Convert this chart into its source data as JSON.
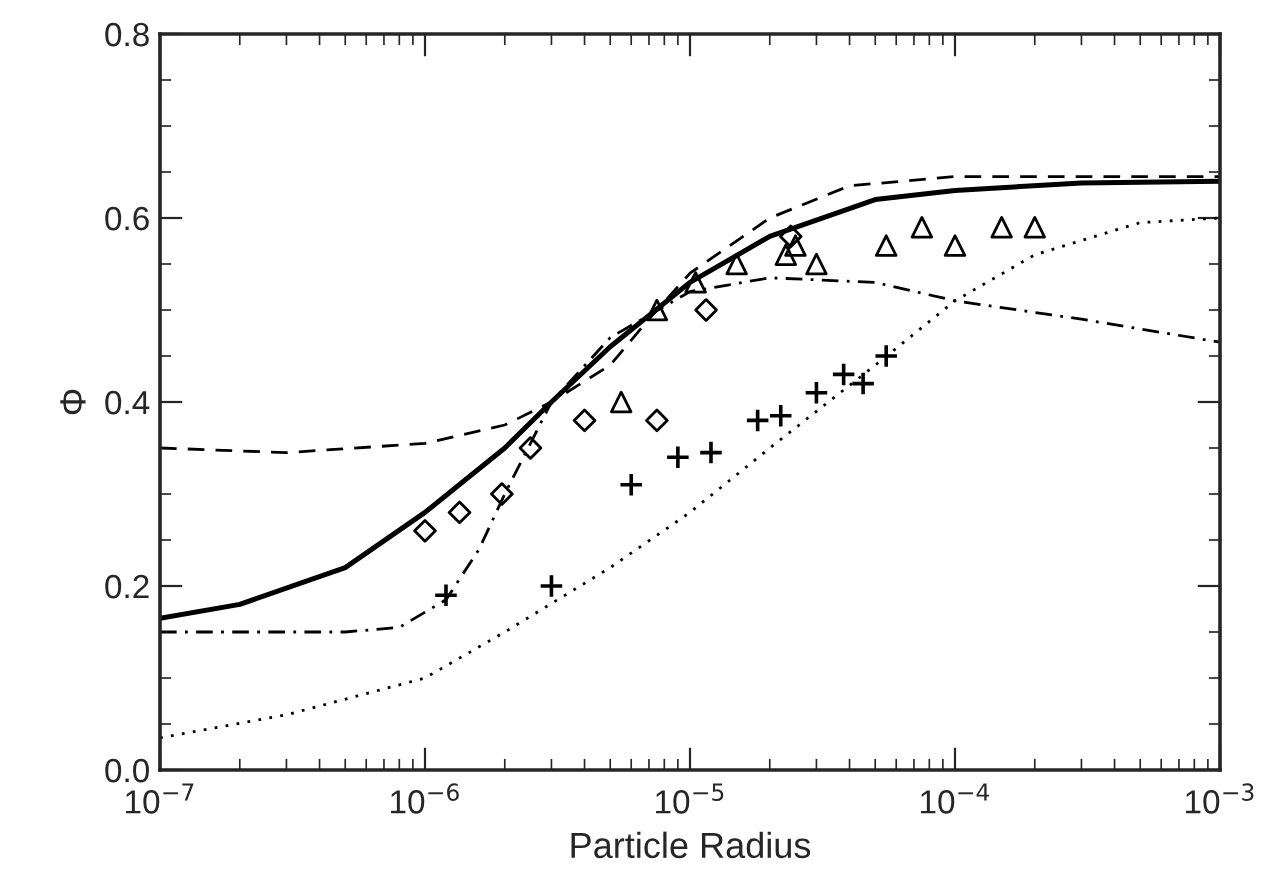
{
  "chart_data": {
    "type": "line",
    "xlabel": "Particle Radius",
    "ylabel": "Φ",
    "log": "x",
    "grid": false,
    "legend": false,
    "xlim": [
      1e-07,
      0.001
    ],
    "xticks": [
      {
        "value": 1e-07,
        "label": "10$^{−7}$"
      },
      {
        "value": 1e-06,
        "label": "10$^{−6}$"
      },
      {
        "value": 1e-05,
        "label": "10$^{−5}$"
      },
      {
        "value": 0.0001,
        "label": "10$^{−4}$"
      },
      {
        "value": 0.001,
        "label": "10$^{−3}$"
      }
    ],
    "ylim": [
      0,
      0.8
    ],
    "yticks": [
      {
        "value": 0,
        "label": "0.0"
      },
      0.2,
      0.4,
      0.6,
      0.8
    ],
    "series": [
      {
        "line_style": "solid",
        "color": "#000000",
        "x": [
          1e-07,
          2e-07,
          5e-07,
          1e-06,
          2e-06,
          3e-06,
          5e-06,
          1e-05,
          2e-05,
          5e-05,
          0.0001,
          0.0003,
          0.001
        ],
        "values": [
          0.165,
          0.18,
          0.22,
          0.28,
          0.35,
          0.4,
          0.46,
          0.53,
          0.58,
          0.62,
          0.63,
          0.638,
          0.64
        ]
      },
      {
        "line_style": "dashed",
        "color": "#000000",
        "x": [
          1e-07,
          3e-07,
          1e-06,
          2e-06,
          3e-06,
          5e-06,
          7e-06,
          1e-05,
          2e-05,
          4e-05,
          0.0001,
          0.001
        ],
        "values": [
          0.35,
          0.345,
          0.355,
          0.375,
          0.4,
          0.44,
          0.49,
          0.54,
          0.6,
          0.635,
          0.645,
          0.645
        ]
      },
      {
        "line_style": "dashdot",
        "color": "#000000",
        "x": [
          1e-07,
          5e-07,
          8e-07,
          1.2e-06,
          1.6e-06,
          2e-06,
          3e-06,
          5e-06,
          1e-05,
          2e-05,
          5e-05,
          0.0001,
          0.0003,
          0.001
        ],
        "values": [
          0.15,
          0.15,
          0.155,
          0.185,
          0.24,
          0.3,
          0.4,
          0.47,
          0.52,
          0.535,
          0.53,
          0.51,
          0.49,
          0.465
        ]
      },
      {
        "line_style": "dotted",
        "color": "#000000",
        "x": [
          1e-07,
          3e-07,
          1e-06,
          2e-06,
          5e-06,
          1e-05,
          2e-05,
          5e-05,
          0.0001,
          0.0002,
          0.0005,
          0.001
        ],
        "values": [
          0.035,
          0.06,
          0.1,
          0.15,
          0.22,
          0.28,
          0.35,
          0.44,
          0.51,
          0.56,
          0.595,
          0.6
        ]
      },
      {
        "type": "scatter",
        "marker": "diamond",
        "color": "#000000",
        "x": [
          1e-06,
          1.35e-06,
          1.95e-06,
          2.5e-06,
          4e-06,
          7.5e-06,
          1.15e-05,
          2.4e-05
        ],
        "values": [
          0.26,
          0.28,
          0.3,
          0.35,
          0.38,
          0.38,
          0.5,
          0.58
        ]
      },
      {
        "type": "scatter",
        "marker": "cross",
        "color": "#000000",
        "x": [
          1.2e-06,
          3e-06,
          6e-06,
          9e-06,
          1.2e-05,
          1.8e-05,
          2.2e-05,
          3e-05,
          3.8e-05,
          4.5e-05,
          5.5e-05
        ],
        "values": [
          0.19,
          0.2,
          0.31,
          0.34,
          0.345,
          0.38,
          0.385,
          0.41,
          0.43,
          0.42,
          0.45
        ]
      },
      {
        "type": "scatter",
        "marker": "triangle",
        "color": "#000000",
        "x": [
          5.5e-06,
          7.5e-06,
          1.05e-05,
          1.5e-05,
          2.3e-05,
          2.5e-05,
          3e-05,
          5.5e-05,
          7.5e-05,
          0.0001,
          0.00015,
          0.0002
        ],
        "values": [
          0.4,
          0.5,
          0.53,
          0.55,
          0.56,
          0.57,
          0.55,
          0.57,
          0.59,
          0.57,
          0.59,
          0.59
        ]
      }
    ]
  }
}
